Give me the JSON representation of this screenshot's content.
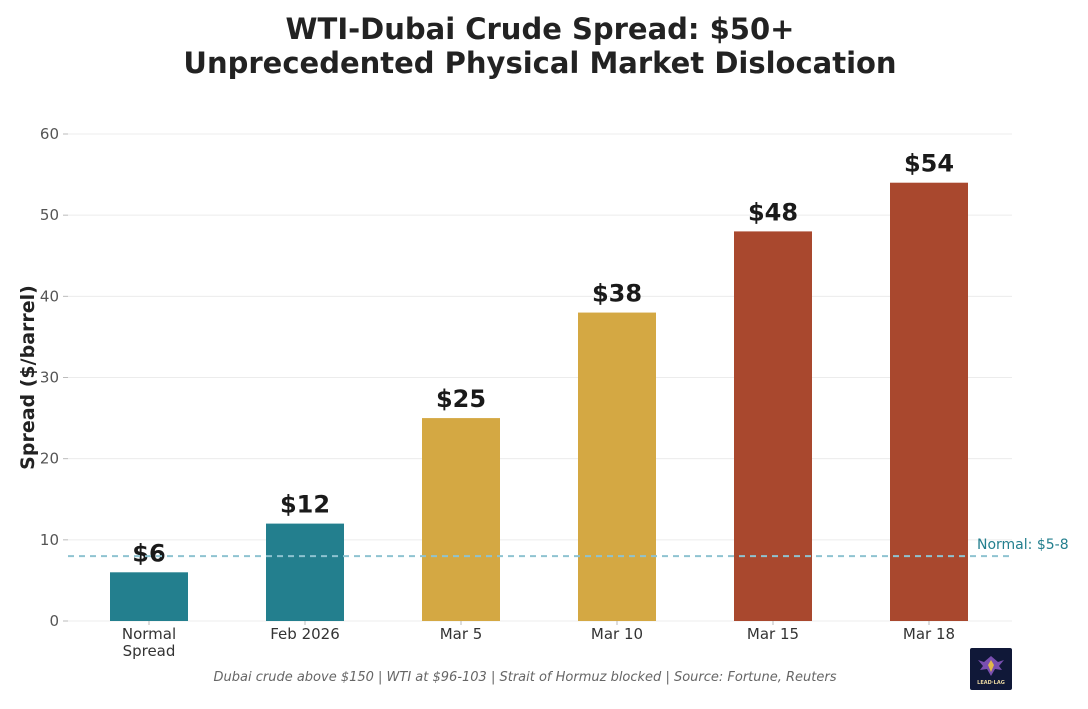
{
  "title_line1": "WTI-Dubai Crude Spread: $50+",
  "title_line2": "Unprecedented Physical Market Dislocation",
  "footer_text": "Dubai crude above $150  |  WTI at $96-103  |  Strait of Hormuz blocked  |  Source: Fortune, Reuters",
  "logo_text": "LEAD·LAG",
  "chart_data": {
    "type": "bar",
    "ylabel": "Spread ($/barrel)",
    "xlabel": "",
    "ylim": [
      0,
      60
    ],
    "yticks": [
      0,
      10,
      20,
      30,
      40,
      50,
      60
    ],
    "grid": true,
    "categories": [
      [
        "Normal",
        "Spread"
      ],
      [
        "Feb 2026"
      ],
      [
        "Mar 5"
      ],
      [
        "Mar 10"
      ],
      [
        "Mar 15"
      ],
      [
        "Mar 18"
      ]
    ],
    "values": [
      6,
      12,
      25,
      38,
      48,
      54
    ],
    "data_labels": [
      "$6",
      "$12",
      "$25",
      "$38",
      "$48",
      "$54"
    ],
    "bar_colors": [
      "#237f8e",
      "#237f8e",
      "#d4a843",
      "#d4a843",
      "#a9482e",
      "#a9482e"
    ],
    "reference_line": {
      "value": 8,
      "label": "Normal: $5-8",
      "color": "#8ec3d1",
      "label_color": "#237f8e"
    }
  }
}
